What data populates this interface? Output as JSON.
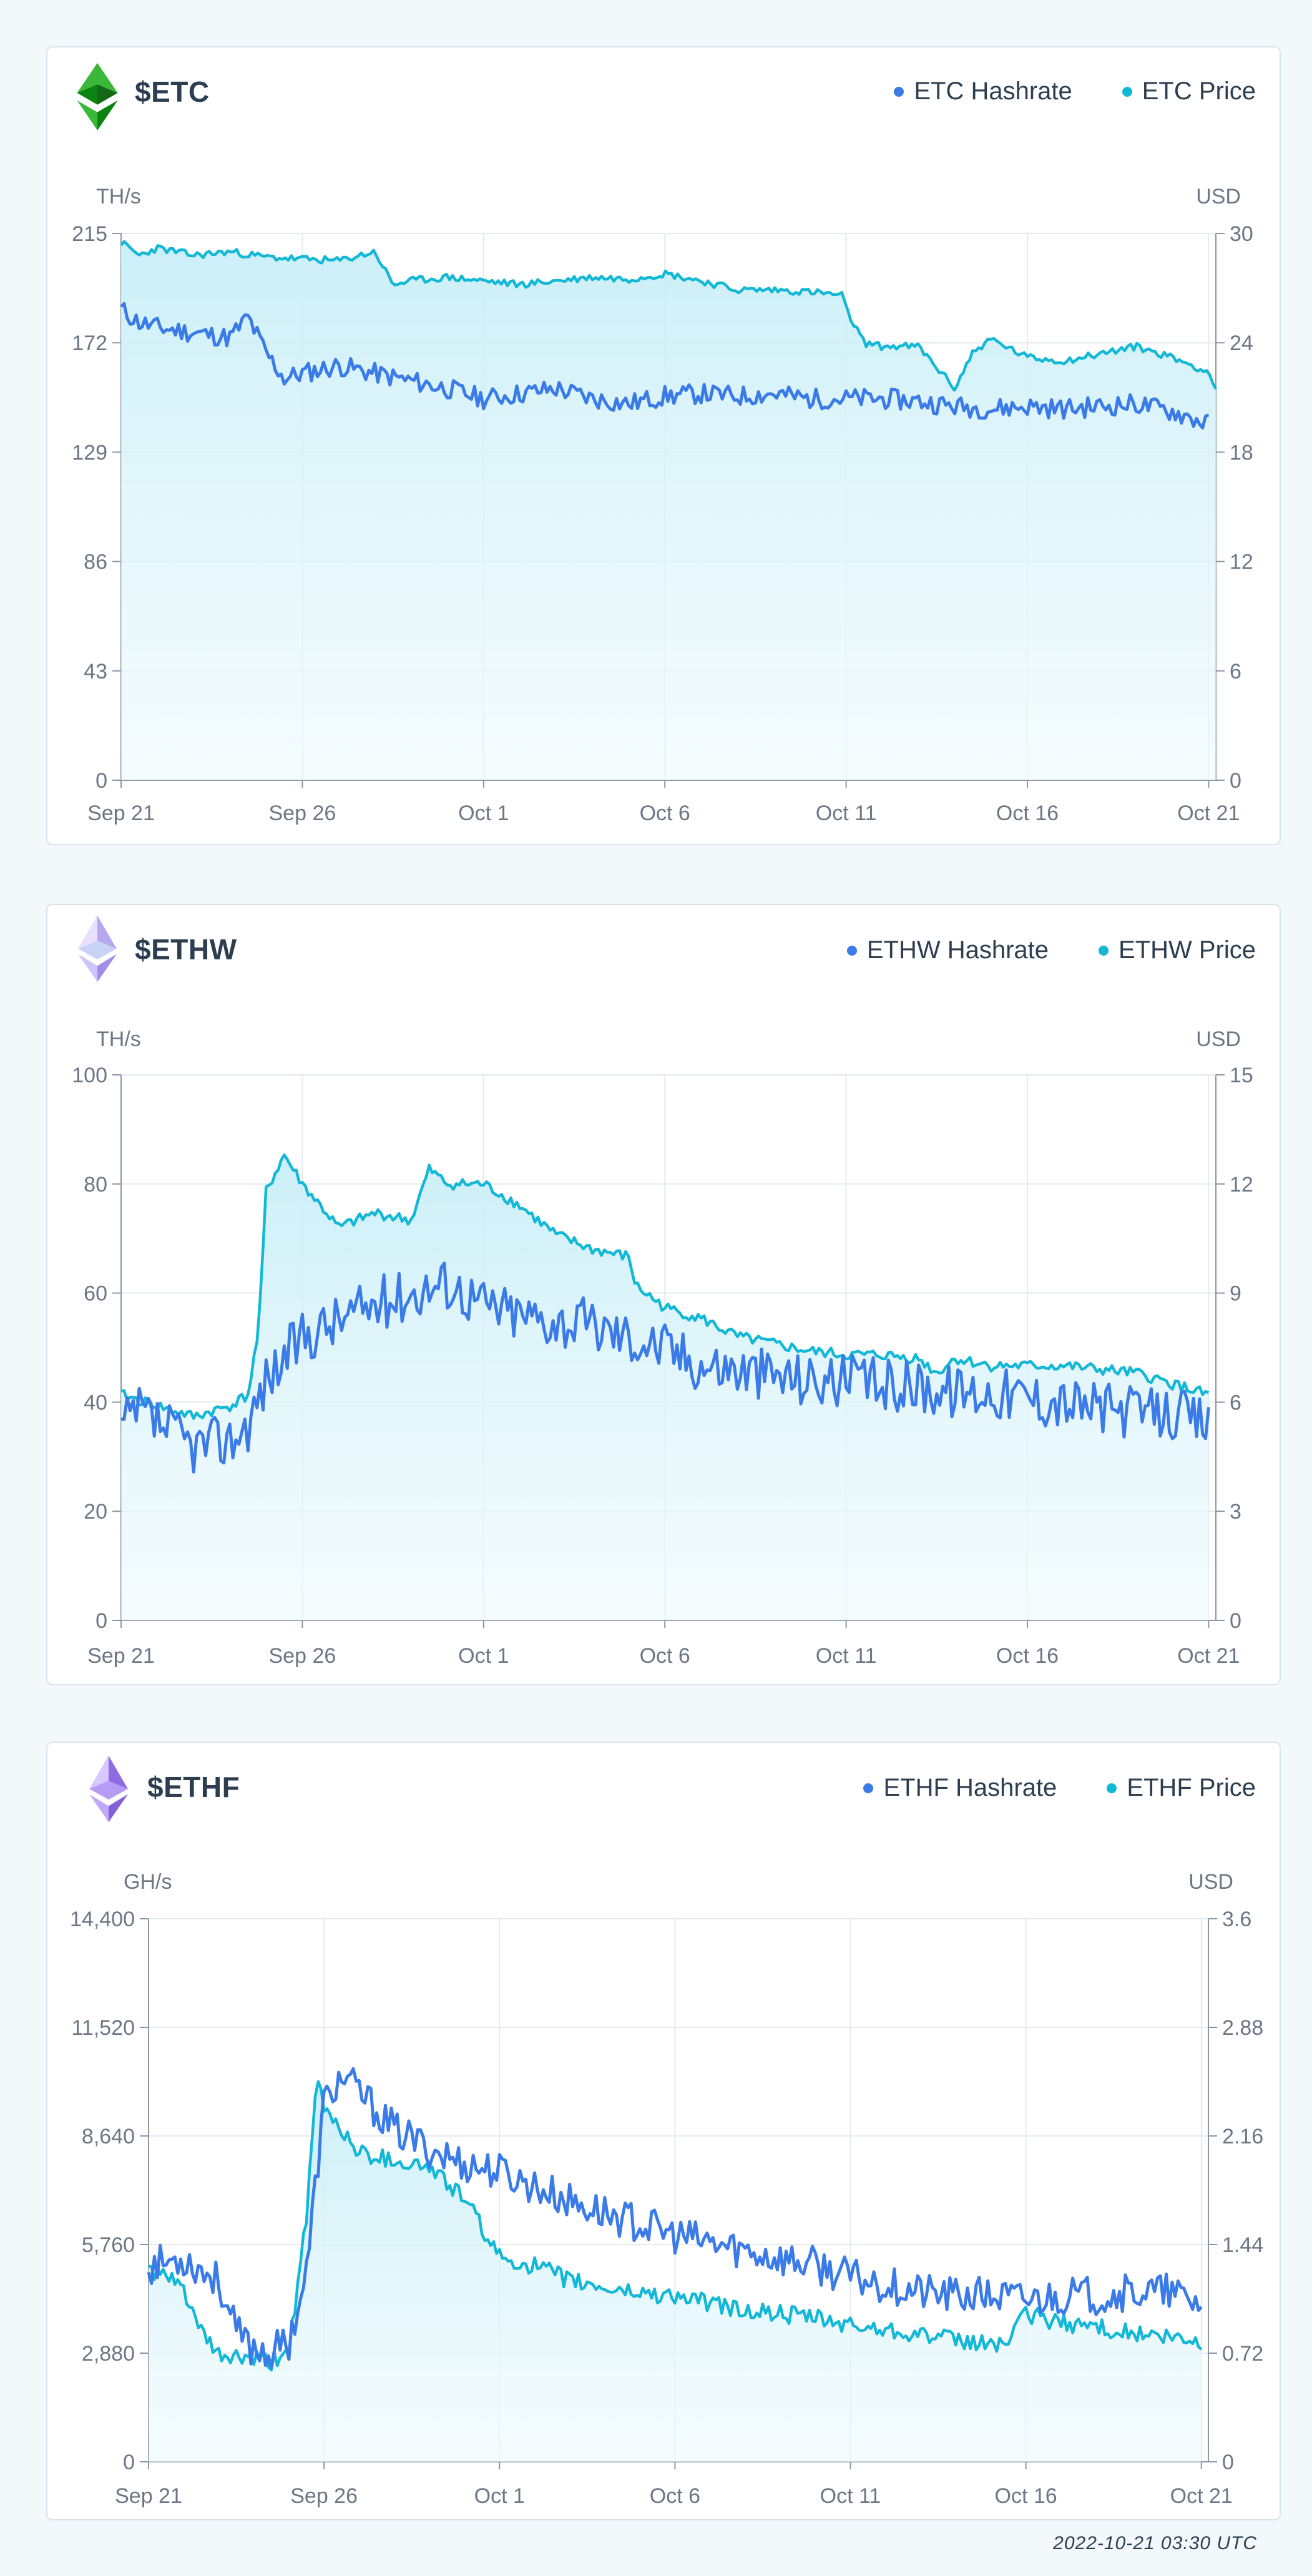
{
  "charts": [
    {
      "id": "etc",
      "ticker": "$ETC",
      "logo": "etc-logo-icon",
      "legend": [
        {
          "label": "ETC Hashrate",
          "color": "#3b7be8"
        },
        {
          "label": "ETC Price",
          "color": "#12b8d6"
        }
      ],
      "left_unit": "TH/s",
      "right_unit": "USD",
      "left_ticks": [
        "0",
        "43",
        "86",
        "129",
        "172",
        "215"
      ],
      "right_ticks": [
        "0",
        "6",
        "12",
        "18",
        "24",
        "30"
      ],
      "x_ticks": [
        "Sep 21",
        "Sep 26",
        "Oct 1",
        "Oct 6",
        "Oct 11",
        "Oct 16",
        "Oct 21"
      ]
    },
    {
      "id": "ethw",
      "ticker": "$ETHW",
      "logo": "ethw-logo-icon",
      "legend": [
        {
          "label": "ETHW Hashrate",
          "color": "#3b7be8"
        },
        {
          "label": "ETHW Price",
          "color": "#12b8d6"
        }
      ],
      "left_unit": "TH/s",
      "right_unit": "USD",
      "left_ticks": [
        "0",
        "20",
        "40",
        "60",
        "80",
        "100"
      ],
      "right_ticks": [
        "0",
        "3",
        "6",
        "9",
        "12",
        "15"
      ],
      "x_ticks": [
        "Sep 21",
        "Sep 26",
        "Oct 1",
        "Oct 6",
        "Oct 11",
        "Oct 16",
        "Oct 21"
      ]
    },
    {
      "id": "ethf",
      "ticker": "$ETHF",
      "logo": "ethf-logo-icon",
      "legend": [
        {
          "label": "ETHF Hashrate",
          "color": "#3b7be8"
        },
        {
          "label": "ETHF Price",
          "color": "#12b8d6"
        }
      ],
      "left_unit": "GH/s",
      "right_unit": "USD",
      "left_ticks": [
        "0",
        "2,880",
        "5,760",
        "8,640",
        "11,520",
        "14,400"
      ],
      "right_ticks": [
        "0",
        "0.72",
        "1.44",
        "2.16",
        "2.88",
        "3.6"
      ],
      "x_ticks": [
        "Sep 21",
        "Sep 26",
        "Oct 1",
        "Oct 6",
        "Oct 11",
        "Oct 16",
        "Oct 21"
      ]
    }
  ],
  "chart_data": [
    {
      "type": "line",
      "title": "$ETC",
      "ylabel": "TH/s",
      "y2label": "USD",
      "ylim": [
        0,
        215
      ],
      "y2lim": [
        0,
        30
      ],
      "grid": true,
      "legend_position": "top-right",
      "x_domain": [
        0,
        30.2
      ],
      "x_tick_values": [
        0,
        5,
        10,
        15,
        20,
        25,
        30
      ],
      "series": [
        {
          "name": "ETC Hashrate",
          "axis": "left",
          "color": "#3b7be8",
          "noise": 4,
          "seed": 11,
          "x": [
            0,
            0.5,
            1,
            2,
            3,
            3.5,
            4,
            4.5,
            5,
            6,
            7,
            8,
            9,
            10,
            11,
            12,
            13,
            14,
            15,
            16,
            17,
            18,
            19,
            20,
            21,
            22,
            23,
            24,
            25,
            26,
            27,
            28,
            29,
            30
          ],
          "values": [
            185,
            180,
            178,
            176,
            174,
            182,
            168,
            158,
            160,
            163,
            160,
            157,
            154,
            150,
            152,
            154,
            150,
            148,
            151,
            152,
            151,
            152,
            150,
            150,
            150,
            149,
            147,
            146,
            147,
            146,
            147,
            148,
            145,
            140
          ]
        },
        {
          "name": "ETC Price",
          "axis": "right",
          "color": "#12b8d6",
          "noise": 0.2,
          "seed": 23,
          "x": [
            0,
            0.5,
            1,
            2,
            3,
            4,
            5,
            6,
            7,
            7.5,
            8,
            9,
            10,
            11,
            12,
            13,
            14,
            15,
            16,
            17,
            18,
            19,
            19.9,
            20,
            20.5,
            21,
            22,
            23,
            23.5,
            24,
            25,
            26,
            27,
            28,
            29,
            30,
            30.2
          ],
          "values": [
            29.5,
            28.8,
            29.2,
            28.8,
            29.0,
            28.7,
            28.6,
            28.5,
            29.0,
            27.2,
            27.4,
            27.6,
            27.4,
            27.2,
            27.4,
            27.6,
            27.5,
            27.8,
            27.4,
            26.9,
            26.9,
            26.8,
            26.6,
            25.8,
            24.0,
            23.8,
            23.8,
            21.5,
            23.5,
            24.2,
            23.2,
            23.0,
            23.4,
            23.8,
            23.2,
            22.4,
            21.4
          ]
        }
      ]
    },
    {
      "type": "line",
      "title": "$ETHW",
      "ylabel": "TH/s",
      "y2label": "USD",
      "ylim": [
        0,
        100
      ],
      "y2lim": [
        0,
        15
      ],
      "grid": true,
      "legend_position": "top-right",
      "x_domain": [
        0,
        30.2
      ],
      "x_tick_values": [
        0,
        5,
        10,
        15,
        20,
        25,
        30
      ],
      "series": [
        {
          "name": "ETHW Hashrate",
          "axis": "left",
          "color": "#3b7be8",
          "noise": 5,
          "seed": 37,
          "x": [
            0,
            0.5,
            1,
            1.5,
            2,
            3,
            3.5,
            4,
            4.5,
            5,
            6,
            7,
            8,
            9,
            10,
            11,
            12,
            13,
            14,
            15,
            16,
            17,
            18,
            19,
            20,
            21,
            22,
            23,
            24,
            25,
            26,
            27,
            28,
            29,
            30
          ],
          "values": [
            35,
            38,
            36,
            34,
            32,
            33,
            36,
            44,
            48,
            52,
            55,
            58,
            60,
            62,
            58,
            56,
            55,
            54,
            52,
            50,
            47,
            46,
            45,
            44,
            44,
            43,
            43,
            42,
            42,
            41,
            40,
            39,
            38,
            38,
            36
          ]
        },
        {
          "name": "ETHW Price",
          "axis": "right",
          "color": "#12b8d6",
          "noise": 0.15,
          "seed": 41,
          "x": [
            0,
            1,
            2,
            3,
            3.5,
            3.8,
            4.0,
            4.2,
            4.5,
            5,
            6,
            7,
            8,
            8.5,
            9,
            10,
            11,
            12,
            13,
            14,
            14.2,
            15,
            16,
            17,
            18,
            19,
            20,
            21,
            22,
            22.5,
            23,
            24,
            25,
            26,
            27,
            28,
            29,
            30
          ],
          "values": [
            6.2,
            5.9,
            5.6,
            5.9,
            6.2,
            8.0,
            11.8,
            12.2,
            12.8,
            12.0,
            10.8,
            11.2,
            11.0,
            12.4,
            12.0,
            12.0,
            11.4,
            10.6,
            10.2,
            10.0,
            9.2,
            8.6,
            8.3,
            7.8,
            7.6,
            7.4,
            7.3,
            7.3,
            7.2,
            6.8,
            7.2,
            7.0,
            7.0,
            7.0,
            6.9,
            6.8,
            6.5,
            6.2
          ]
        }
      ]
    },
    {
      "type": "line",
      "title": "$ETHF",
      "ylabel": "GH/s",
      "y2label": "USD",
      "ylim": [
        0,
        14400
      ],
      "y2lim": [
        0,
        3.6
      ],
      "grid": true,
      "legend_position": "top-right",
      "x_domain": [
        0,
        30.2
      ],
      "x_tick_values": [
        0,
        5,
        10,
        15,
        20,
        25,
        30
      ],
      "series": [
        {
          "name": "ETHF Hashrate",
          "axis": "left",
          "color": "#3b7be8",
          "noise": 500,
          "seed": 53,
          "x": [
            0,
            1,
            2,
            2.5,
            3,
            3.5,
            4,
            4.5,
            5,
            5.5,
            6,
            7,
            8,
            9,
            10,
            11,
            12,
            13,
            14,
            15,
            16,
            17,
            18,
            19,
            20,
            21,
            22,
            23,
            24,
            25,
            26,
            27,
            28,
            29,
            30
          ],
          "values": [
            5200,
            5400,
            4800,
            3400,
            3000,
            2900,
            3200,
            5000,
            9500,
            10200,
            9800,
            8800,
            8300,
            7900,
            7700,
            7300,
            6900,
            6600,
            6300,
            6000,
            5800,
            5600,
            5400,
            5200,
            4900,
            4700,
            4500,
            4400,
            4400,
            4300,
            4400,
            4400,
            4500,
            4500,
            4200
          ]
        },
        {
          "name": "ETHF Price",
          "axis": "right",
          "color": "#12b8d6",
          "noise": 0.06,
          "seed": 61,
          "x": [
            0,
            1,
            1.5,
            2,
            3,
            3.5,
            4,
            4.5,
            4.8,
            5,
            5.5,
            6,
            7,
            8,
            9,
            10,
            11,
            12,
            13,
            14,
            15,
            16,
            17,
            18,
            19,
            20,
            21,
            22,
            23,
            24,
            24.5,
            25,
            26,
            27,
            28,
            29,
            30
          ],
          "values": [
            1.28,
            1.15,
            0.85,
            0.7,
            0.68,
            0.65,
            0.75,
            1.6,
            2.55,
            2.35,
            2.2,
            2.05,
            2.0,
            1.95,
            1.75,
            1.35,
            1.3,
            1.2,
            1.15,
            1.12,
            1.1,
            1.05,
            1.0,
            0.98,
            0.95,
            0.9,
            0.88,
            0.85,
            0.8,
            0.78,
            0.8,
            0.98,
            0.92,
            0.9,
            0.85,
            0.82,
            0.78
          ]
        }
      ]
    }
  ],
  "footer": {
    "timestamp": "2022-10-21 03:30 UTC"
  }
}
